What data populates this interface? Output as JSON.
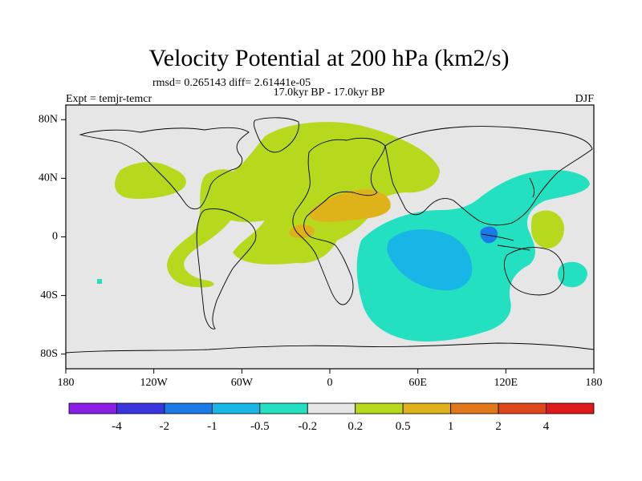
{
  "chart_data": {
    "type": "heatmap",
    "title": "Velocity Potential at 200 hPa (km2/s)",
    "stats_line": "rmsd= 0.265143 diff= 2.61441e-05",
    "left_label": "Expt = temjr-temcr",
    "center_label": "17.0kyr BP - 17.0kyr BP",
    "right_label": "DJF",
    "x_ticks": [
      "180",
      "120W",
      "60W",
      "0",
      "60E",
      "120E",
      "180"
    ],
    "y_ticks": [
      "80N",
      "40N",
      "0",
      "40S",
      "80S"
    ],
    "x_tick_values": [
      -180,
      -120,
      -60,
      0,
      60,
      120,
      180
    ],
    "y_tick_values": [
      80,
      40,
      0,
      -40,
      -80
    ],
    "xlim": [
      -180,
      180
    ],
    "ylim": [
      -90,
      90
    ],
    "colorbar": {
      "labels": [
        "-4",
        "-2",
        "-1",
        "-0.5",
        "-0.2",
        "0.2",
        "0.5",
        "1",
        "2",
        "4"
      ],
      "colors": [
        "#8a1fe6",
        "#3b35e0",
        "#1a7be8",
        "#18b6e6",
        "#22e0c0",
        "#e6e6e6",
        "#b6d91e",
        "#e0b21a",
        "#e0771a",
        "#e0471a",
        "#e01a1a"
      ]
    },
    "regions": [
      {
        "name": "north-atlantic-eurasia-positive",
        "level": "0.2 to 0.5"
      },
      {
        "name": "north-africa-mideast-positive",
        "level": "0.5 to 1"
      },
      {
        "name": "tropical-americas-positive",
        "level": "0.2 to 0.5"
      },
      {
        "name": "north-pacific-positive",
        "level": "0.2 to 0.5"
      },
      {
        "name": "west-pacific-positive",
        "level": "0.2 to 0.5"
      },
      {
        "name": "indian-ocean-negative",
        "level": "-0.5 to -0.2"
      },
      {
        "name": "south-indian-ocean-negative",
        "level": "-1 to -0.5"
      },
      {
        "name": "maritime-continent-negative",
        "level": "-2 to -1"
      }
    ]
  }
}
